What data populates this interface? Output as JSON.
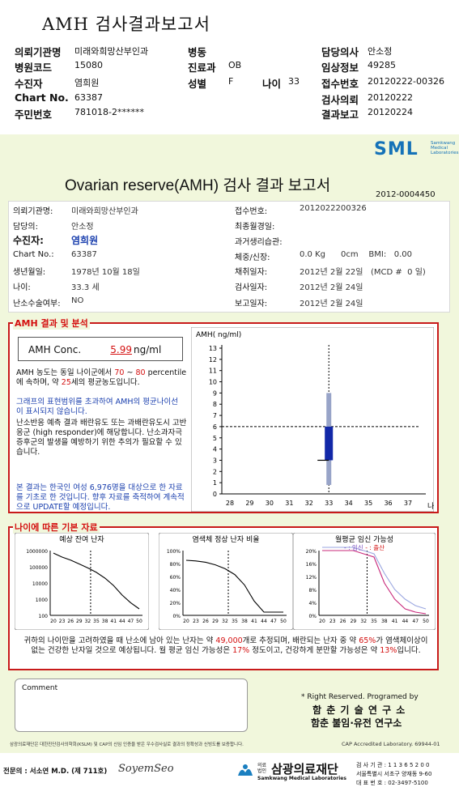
{
  "header": {
    "title": "AMH 검사결과보고서",
    "rows": [
      {
        "k1": "의뢰기관명",
        "v1": "미래와희망산부인과",
        "k2": "병동",
        "v2": "",
        "k4": "담당의사",
        "v4": "안소정"
      },
      {
        "k1": "병원코드",
        "v1": "15080",
        "k2": "진료과",
        "v2": "OB",
        "k4": "임상정보",
        "v4": "49285"
      },
      {
        "k1": "수진자",
        "v1": "염희원",
        "k2": "성별",
        "v2": "F",
        "k3": "나이",
        "v3": "33",
        "k4": "접수번호",
        "v4": "20120222-00326"
      },
      {
        "k1": "Chart No.",
        "v1": "63387",
        "k4": "검사의뢰",
        "v4": "20120222"
      },
      {
        "k1": "주민번호",
        "v1": "781018-2******",
        "k4": "결과보고",
        "v4": "20120224"
      }
    ]
  },
  "logo": {
    "text": "SML",
    "sub": "Samkwang Medical Laboratories"
  },
  "report": {
    "title": "Ovarian reserve(AMH) 검사 결과 보고서",
    "number": "2012-0004450"
  },
  "info": {
    "left": [
      {
        "k": "의뢰기관명:",
        "v": "미래와희망산부인과"
      },
      {
        "k": "담당의:",
        "v": "안소정"
      },
      {
        "k": "수진자:",
        "v": "염희원"
      },
      {
        "k": "Chart No.:",
        "v": "63387"
      },
      {
        "k": "생년월일:",
        "v": "1978년 10월 18일"
      },
      {
        "k": "나이:",
        "v": "33.3 세"
      },
      {
        "k": "난소수술여부:",
        "v": "NO"
      }
    ],
    "right": [
      {
        "k": "접수번호:",
        "v": "2012022200326"
      },
      {
        "k": "최종월경일:",
        "v": ""
      },
      {
        "k": "과거생리습관:",
        "v": ""
      },
      {
        "k": "체중/신장:",
        "v": "0.0 Kg      0cm    BMI:   0.00"
      },
      {
        "k": "채취일자:",
        "v": "2012년 2월 22일   (MCD #  0 일)"
      },
      {
        "k": "검사일자:",
        "v": "2012년 2월 24일"
      },
      {
        "k": "보고일자:",
        "v": "2012년 2월 24일"
      }
    ]
  },
  "amh": {
    "section_title": "AMH 결과 및 분석",
    "label": "AMH Conc.",
    "value": "5.99",
    "unit": "ng/ml",
    "p1a": "AMH 농도는 동일 나이군에서",
    "p1_pct1": "70",
    "p1_pct2": "80",
    "p1b": "percentile에 속하며, 약",
    "p1_age": "25",
    "p1c": "세의 평균농도입니다.",
    "p2": "그래프의 표현범위를 초과하여 AMH의 평균나이선이 표시되지 않습니다.",
    "p3": "난소반응 예측 결과 배란유도 또는 과배란유도시 고반응군 (high responder)에 해당합니다. 난소과자극 증후군의 발생을 예방하기 위한 추의가 필요할 수 있습니다.",
    "p4": "본 결과는 한국인 여성 6,976명을 대상으로 한 자료를 기초로 한 것입니다. 향후 자료를 축적하여 계속적으로 UPDATE할 예정입니다."
  },
  "chart_data": [
    {
      "type": "box",
      "ylabel": "AMH( ng/ml)",
      "xlabel": "나이",
      "categories": [
        28,
        29,
        30,
        31,
        32,
        33,
        34,
        35,
        36,
        37
      ],
      "ylim": [
        0,
        13
      ],
      "yticks": [
        0,
        1,
        2,
        3,
        4,
        5,
        6,
        7,
        8,
        9,
        10,
        11,
        12,
        13
      ],
      "box": {
        "x": 33,
        "whisker_low": 0.8,
        "q1": 3.0,
        "q3": 6.0,
        "whisker_high": 9.0
      },
      "reference_line": 6.0,
      "vertical_marker": 33,
      "grid": false
    },
    {
      "type": "line",
      "title": "예상 잔여 난자",
      "x": [
        20,
        23,
        26,
        29,
        32,
        35,
        38,
        41,
        44,
        47,
        50
      ],
      "xticks": [
        "20",
        "23",
        "26",
        "29",
        "32",
        "35",
        "38",
        "41",
        "44",
        "47",
        "50"
      ],
      "ytick_labels": [
        "1000000",
        "100000",
        "10000",
        "1000",
        "100"
      ],
      "yscale": "log",
      "values": [
        700000,
        400000,
        260000,
        150000,
        85000,
        45000,
        20000,
        7000,
        1800,
        600,
        250
      ],
      "marker": 33
    },
    {
      "type": "line",
      "title": "염색체 정상 난자 비율",
      "x": [
        20,
        23,
        26,
        29,
        32,
        35,
        38,
        41,
        44,
        47,
        50
      ],
      "xticks": [
        "20",
        "23",
        "26",
        "29",
        "32",
        "35",
        "38",
        "41",
        "44",
        "47",
        "50"
      ],
      "ytick_labels": [
        "100%",
        "80%",
        "60%",
        "40%",
        "20%",
        "0%"
      ],
      "values": [
        85,
        84,
        82,
        78,
        72,
        63,
        47,
        22,
        5,
        5,
        5
      ],
      "marker": 33
    },
    {
      "type": "line",
      "title": "월평균 임신 가능성",
      "legend": {
        "a": "임신",
        "b": "출산"
      },
      "x": [
        20,
        23,
        26,
        29,
        32,
        35,
        38,
        41,
        44,
        47,
        50
      ],
      "xticks": [
        "20",
        "23",
        "26",
        "29",
        "32",
        "35",
        "38",
        "41",
        "44",
        "47",
        "50"
      ],
      "ytick_labels": [
        "20%",
        "16%",
        "12%",
        "8%",
        "4%",
        "0%"
      ],
      "series": [
        {
          "values": [
            21,
            21,
            21,
            21,
            20,
            19,
            13,
            8,
            5,
            3,
            2
          ]
        },
        {
          "values": [
            20,
            20,
            20,
            20,
            19,
            18,
            10,
            5,
            2,
            1,
            0.5
          ]
        }
      ],
      "marker": 33
    }
  ],
  "age": {
    "section_title": "나이에 따른 기본 자료",
    "s1": "귀하의 나이만을 고려하였을 때 난소에 남아 있는 난자는 약",
    "eggs": "49,000",
    "s2": "개로 추정되며, 배란되는 난자 중 약",
    "pct1": "65%",
    "s3": "가 염색체이상이 없는 건강한 난자일 것으로 예상됩니다. 월 평균 임신 가능성은",
    "pct2": "17%",
    "s4": "정도이고, 건강하게 분만할 가능성은 약",
    "pct3": "13%",
    "s5": "입니다."
  },
  "comment_label": "Comment",
  "footer": {
    "rights": "* Right Reserved. Programed by",
    "org1": "함 춘 기 술 연 구 소",
    "org2": "함춘 불임·유전 연구소",
    "cert": "삼광의료재단은 대한진단검사의학회(KSLM) 및 CAP의 신임 인증을 받은 우수검사실로 결과의 정확성과 신빙도를 보증합니다.",
    "cap": "CAP  Accredited  Laboratory.  69944-01",
    "doctor": "전문의 : 서소연 M.D. (제 711호)",
    "sign": "SoyemSeo",
    "company": "삼광의료재단",
    "company_pre": "의료법인",
    "company_en": "Samkwang Medical Laboratories",
    "addr1": "검 사 기 관 : 1 1 3 6 5 2 0 0",
    "addr2": "서울특별시 서초구 양재동 9-60",
    "addr3": "대 표 번 호 : 02-3497-5100"
  }
}
